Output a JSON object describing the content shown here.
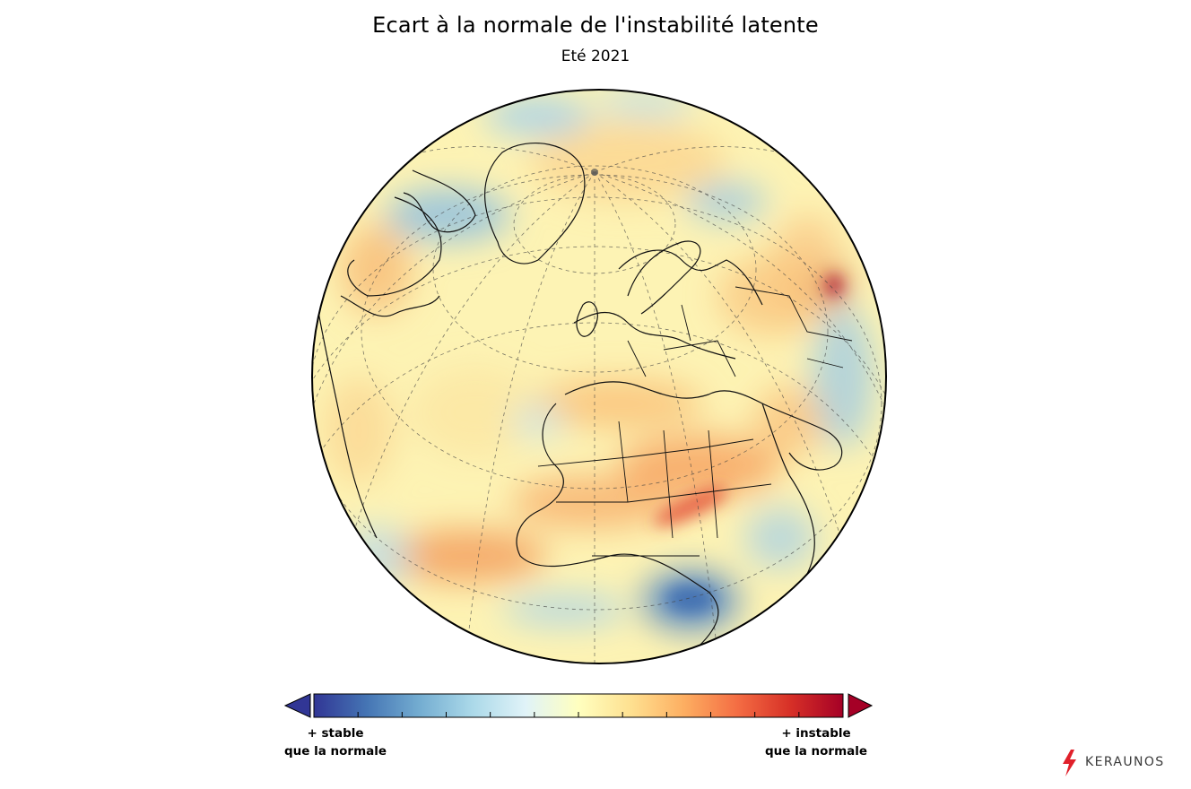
{
  "title": "Ecart à la normale de l'instabilité latente",
  "subtitle": "Eté 2021",
  "colorbar": {
    "colors": [
      "#313695",
      "#4575b4",
      "#74add1",
      "#abd9e9",
      "#e0f3f8",
      "#ffffbf",
      "#fee090",
      "#fdae61",
      "#f46d43",
      "#d73027",
      "#a50026"
    ],
    "left_label_line1": "+ stable",
    "left_label_line2": "que la normale",
    "right_label_line1": "+ instable",
    "right_label_line2": "que la normale",
    "extend_low_color": "#313695",
    "extend_high_color": "#a50026"
  },
  "map": {
    "projection": "orthographic",
    "base_color": "#fdf3b4",
    "anomalies": [
      {
        "region": "north-africa-sahel-band",
        "tone": "unstable",
        "color": "#f6a05e"
      },
      {
        "region": "gulf-of-guinea-band",
        "tone": "unstable",
        "color": "#f29a5a"
      },
      {
        "region": "mediterranean",
        "tone": "unstable",
        "color": "#f9c27a"
      },
      {
        "region": "west-russia",
        "tone": "unstable",
        "color": "#e34a33"
      },
      {
        "region": "southern-africa",
        "tone": "stable",
        "color": "#5f8fc4"
      },
      {
        "region": "hudson-bay",
        "tone": "stable",
        "color": "#8fbfe0"
      },
      {
        "region": "arctic",
        "tone": "stable",
        "color": "#a9d3ea"
      },
      {
        "region": "east-africa",
        "tone": "stable",
        "color": "#9cc9e4"
      }
    ]
  },
  "logo": {
    "text": "KERAUNOS",
    "accent_color": "#e0202a"
  }
}
